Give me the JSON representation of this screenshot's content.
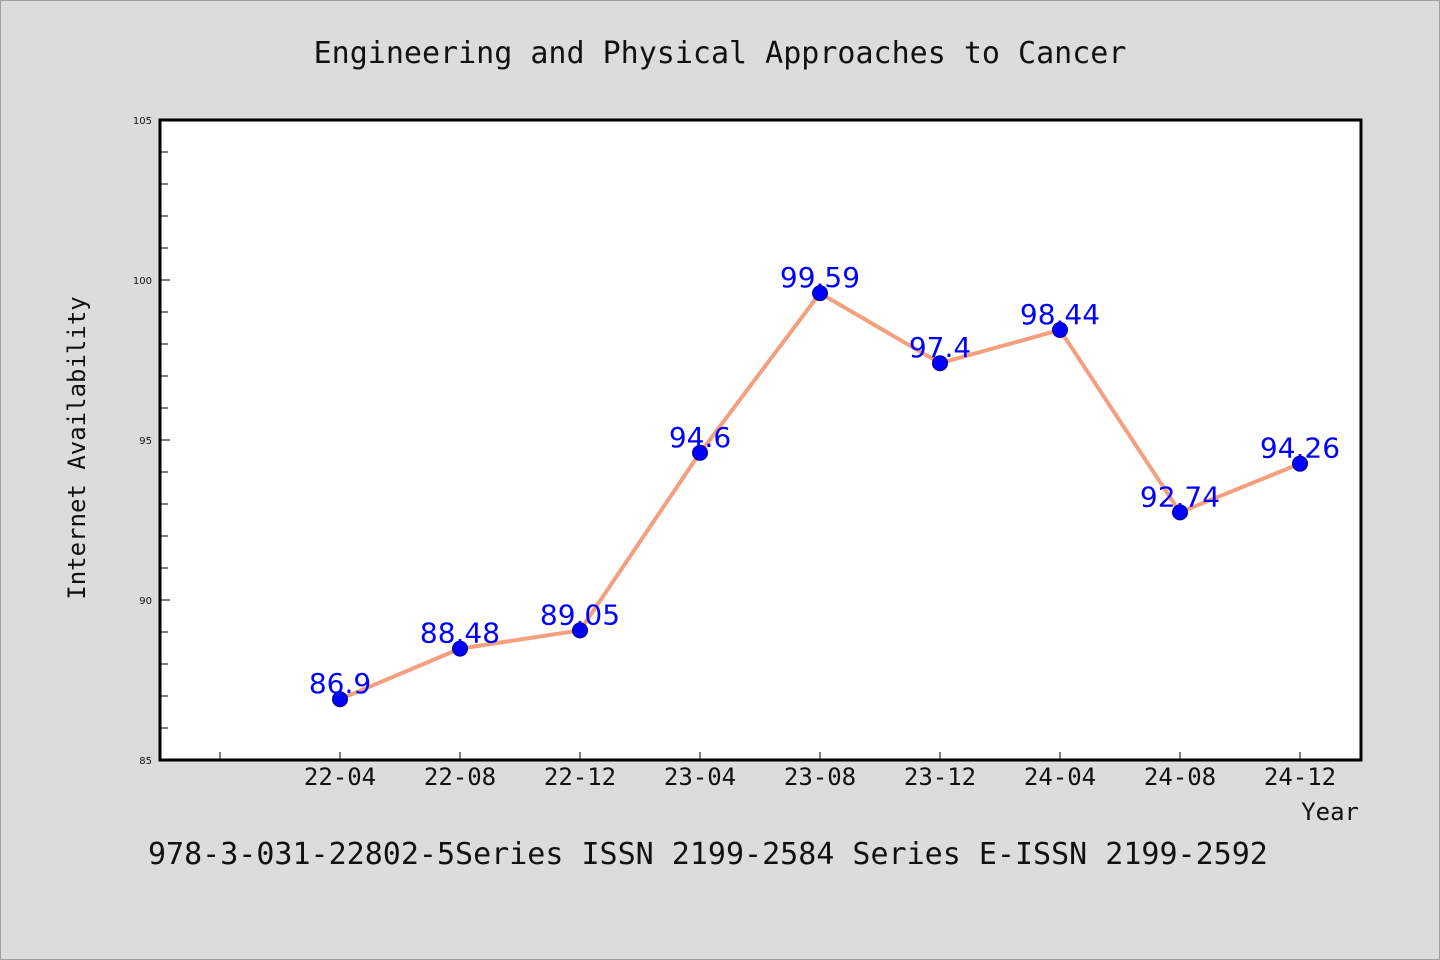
{
  "chart_data": {
    "type": "line",
    "title": "Engineering and Physical Approaches to Cancer",
    "xlabel": "Year",
    "ylabel": "Internet Availability",
    "categories": [
      "22-04",
      "22-08",
      "22-12",
      "23-04",
      "23-08",
      "23-12",
      "24-04",
      "24-08",
      "24-12"
    ],
    "series": [
      {
        "values": [
          86.9,
          88.48,
          89.05,
          94.6,
          99.59,
          97.4,
          98.44,
          92.74,
          94.26
        ],
        "labels": [
          "86.9",
          "88.48",
          "89.05",
          "94.6",
          "99.59",
          "97.4",
          "98.44",
          "92.74",
          "94.26"
        ],
        "line_color": "#f4a07e",
        "marker_color": "#0000ff"
      }
    ],
    "ylim": [
      85,
      105
    ],
    "yticks": [
      "85",
      "90",
      "95",
      "100",
      "105"
    ],
    "grid": false,
    "legend": "none",
    "plot_background": "#ffffff",
    "page_background": "#dcdcdc"
  },
  "footer": "978-3-031-22802-5Series ISSN 2199-2584 Series E-ISSN 2199-2592"
}
